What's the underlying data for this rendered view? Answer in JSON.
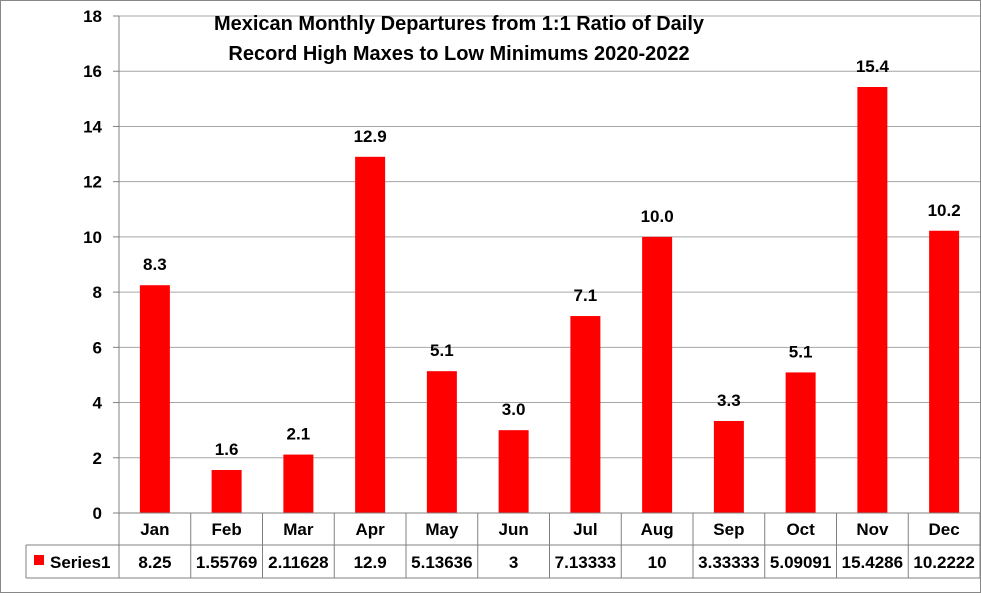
{
  "chart_data": {
    "type": "bar",
    "title_lines": [
      "Mexican Monthly Departures from 1:1 Ratio of Daily",
      "Record High Maxes to Low Minimums 2020-2022"
    ],
    "categories": [
      "Jan",
      "Feb",
      "Mar",
      "Apr",
      "May",
      "Jun",
      "Jul",
      "Aug",
      "Sep",
      "Oct",
      "Nov",
      "Dec"
    ],
    "series": [
      {
        "name": "Series1",
        "color": "#ff0000",
        "values": [
          8.25,
          1.55769,
          2.11628,
          12.9,
          5.13636,
          3,
          7.13333,
          10,
          3.33333,
          5.09091,
          15.4286,
          10.2222
        ],
        "data_labels": [
          "8.3",
          "1.6",
          "2.1",
          "12.9",
          "5.1",
          "3.0",
          "7.1",
          "10.0",
          "3.3",
          "5.1",
          "15.4",
          "10.2"
        ],
        "table_values": [
          "8.25",
          "1.55769",
          "2.11628",
          "12.9",
          "5.13636",
          "3",
          "7.13333",
          "10",
          "3.33333",
          "5.09091",
          "15.4286",
          "10.2222"
        ]
      }
    ],
    "ylim": [
      0,
      18
    ],
    "y_ticks": [
      "0",
      "2",
      "4",
      "6",
      "8",
      "10",
      "12",
      "14",
      "16",
      "18"
    ],
    "grid": true,
    "data_table": true,
    "xlabel": "",
    "ylabel": ""
  }
}
